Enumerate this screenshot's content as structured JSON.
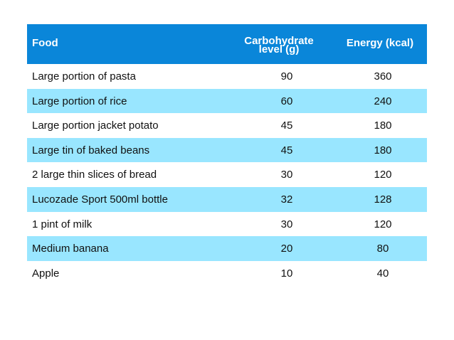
{
  "table": {
    "headers": {
      "food": "Food",
      "carb": "Carbohydrate level (g)",
      "energy": "Energy (kcal)"
    },
    "rows": [
      {
        "food": "Large portion of pasta",
        "carb": "90",
        "energy": "360"
      },
      {
        "food": "Large portion of rice",
        "carb": "60",
        "energy": "240"
      },
      {
        "food": "Large portion jacket potato",
        "carb": "45",
        "energy": "180"
      },
      {
        "food": "Large tin of baked beans",
        "carb": "45",
        "energy": "180"
      },
      {
        "food": "2 large thin slices of bread",
        "carb": "30",
        "energy": "120"
      },
      {
        "food": "Lucozade Sport 500ml bottle",
        "carb": "32",
        "energy": "128"
      },
      {
        "food": "1 pint of milk",
        "carb": "30",
        "energy": "120"
      },
      {
        "food": "Medium banana",
        "carb": "20",
        "energy": "80"
      },
      {
        "food": "Apple",
        "carb": "10",
        "energy": "40"
      }
    ]
  },
  "colors": {
    "header_bg": "#0a86d9",
    "header_text": "#ffffff",
    "alt_row_bg": "#99e6ff",
    "row_bg": "#ffffff"
  }
}
